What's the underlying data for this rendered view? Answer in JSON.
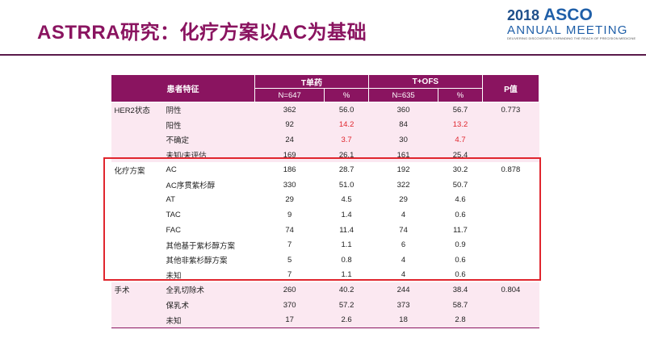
{
  "header": {
    "title": "ASTRRA研究：化疗方案以AC为基础",
    "logo": {
      "year": "2018",
      "brand": "ASCO",
      "line2": "ANNUAL MEETING",
      "tagline": "DELIVERING DISCOVERIES: EXPANDING THE REACH OF PRECISION MEDICINE"
    }
  },
  "table": {
    "head": {
      "characteristics": "患者特征",
      "arm1": "T单药",
      "arm2": "T+OFS",
      "arm1_n": "N=647",
      "arm1_pct": "%",
      "arm2_n": "N=635",
      "arm2_pct": "%",
      "p": "P值"
    },
    "highlight_color": "#e0262e",
    "groups": [
      {
        "label": "HER2状态",
        "p": "0.773",
        "background": "pink",
        "highlight_rows": [
          1,
          2
        ],
        "rows": [
          [
            "阴性",
            "362",
            "56.0",
            "360",
            "56.7"
          ],
          [
            "阳性",
            "92",
            "14.2",
            "84",
            "13.2"
          ],
          [
            "不确定",
            "24",
            "3.7",
            "30",
            "4.7"
          ],
          [
            "未知/未评估",
            "169",
            "26.1",
            "161",
            "25.4"
          ]
        ]
      },
      {
        "label": "化疗方案",
        "p": "0.878",
        "background": "white",
        "highlight_rows": [],
        "rows": [
          [
            "AC",
            "186",
            "28.7",
            "192",
            "30.2"
          ],
          [
            "AC序贯紫杉醇",
            "330",
            "51.0",
            "322",
            "50.7"
          ],
          [
            "AT",
            "29",
            "4.5",
            "29",
            "4.6"
          ],
          [
            "TAC",
            "9",
            "1.4",
            "4",
            "0.6"
          ],
          [
            "FAC",
            "74",
            "11.4",
            "74",
            "11.7"
          ],
          [
            "其他基于紫杉醇方案",
            "7",
            "1.1",
            "6",
            "0.9"
          ],
          [
            "其他非紫杉醇方案",
            "5",
            "0.8",
            "4",
            "0.6"
          ],
          [
            "未知",
            "7",
            "1.1",
            "4",
            "0.6"
          ]
        ]
      },
      {
        "label": "手术",
        "p": "0.804",
        "background": "pink",
        "highlight_rows": [],
        "rows": [
          [
            "全乳切除术",
            "260",
            "40.2",
            "244",
            "38.4"
          ],
          [
            "保乳术",
            "370",
            "57.2",
            "373",
            "58.7"
          ],
          [
            "未知",
            "17",
            "2.6",
            "18",
            "2.8"
          ]
        ]
      }
    ]
  }
}
